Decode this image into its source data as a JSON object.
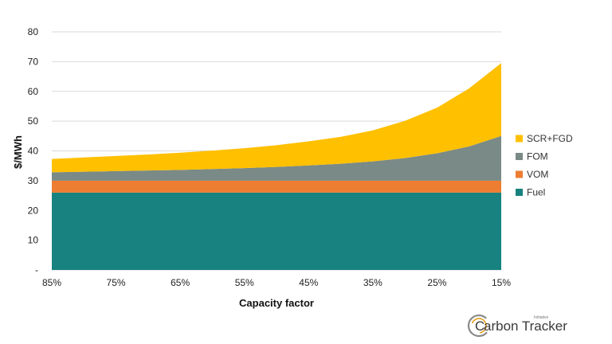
{
  "chart_data": {
    "type": "area",
    "stacked": true,
    "xlabel": "Capacity factor",
    "ylabel": "$/MWh",
    "x": [
      "85%",
      "80%",
      "75%",
      "70%",
      "65%",
      "60%",
      "55%",
      "50%",
      "45%",
      "40%",
      "35%",
      "30%",
      "25%",
      "20%",
      "15%"
    ],
    "x_tick_labels": [
      "85%",
      "75%",
      "65%",
      "55%",
      "45%",
      "35%",
      "25%",
      "15%"
    ],
    "y_ticks": [
      "-",
      "10",
      "20",
      "30",
      "40",
      "50",
      "60",
      "70",
      "80"
    ],
    "ylim": [
      0,
      80
    ],
    "grid": true,
    "legend_position": "right",
    "series": [
      {
        "name": "Fuel",
        "color": "#17827f",
        "values": [
          26,
          26,
          26,
          26,
          26,
          26,
          26,
          26,
          26,
          26,
          26,
          26,
          26,
          26,
          26
        ]
      },
      {
        "name": "VOM",
        "color": "#ed7d31",
        "values": [
          4,
          4,
          4,
          4,
          4,
          4,
          4,
          4,
          4,
          4,
          4,
          4,
          4,
          4,
          4
        ]
      },
      {
        "name": "FOM",
        "color": "#7a8a86",
        "values": [
          2.8,
          3.0,
          3.2,
          3.4,
          3.6,
          3.9,
          4.2,
          4.6,
          5.1,
          5.7,
          6.5,
          7.6,
          9.2,
          11.5,
          15.0
        ]
      },
      {
        "name": "SCR+FGD",
        "color": "#ffc000",
        "values": [
          4.5,
          4.8,
          5.1,
          5.4,
          5.8,
          6.2,
          6.7,
          7.3,
          8.1,
          9.0,
          10.4,
          12.5,
          15.3,
          19.5,
          24.5
        ]
      }
    ]
  },
  "logo": {
    "text": "arbon Tracker",
    "initial": "C",
    "subtitle": "Initiative"
  }
}
